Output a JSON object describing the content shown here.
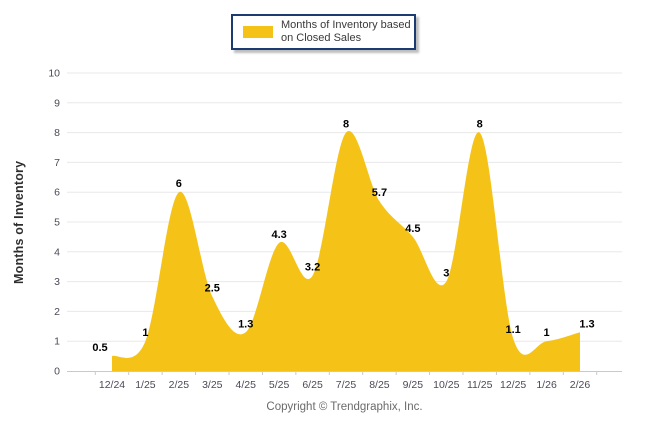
{
  "legend": {
    "label": "Months of Inventory based on Closed Sales"
  },
  "chart_data": {
    "type": "area",
    "title": "",
    "series_name": "Months of Inventory based on Closed Sales",
    "categories": [
      "12/24",
      "1/25",
      "2/25",
      "3/25",
      "4/25",
      "5/25",
      "6/25",
      "7/25",
      "8/25",
      "9/25",
      "10/25",
      "11/25",
      "12/25",
      "1/26",
      "2/26"
    ],
    "values": [
      0.5,
      1,
      6,
      2.5,
      1.3,
      4.3,
      3.2,
      8,
      5.7,
      4.5,
      3,
      8,
      1.1,
      1,
      1.3
    ],
    "xlabel": "",
    "ylabel": "Months of Inventory",
    "ylim": [
      0,
      10
    ],
    "ytick_step": 1,
    "grid": true,
    "smooth": true,
    "data_labels": true,
    "legend_position": "top",
    "colors": {
      "area_fill": "#f5c318",
      "legend_border": "#1c3b6e",
      "gridline": "#e8e8e8",
      "axis_line": "#c9c9c9",
      "tick_label": "#4a4a58",
      "data_label": "#000000",
      "axis_title": "#2e2e2e",
      "copyright": "#6b6b6b"
    }
  },
  "footer": {
    "copyright": "Copyright © Trendgraphix, Inc."
  }
}
